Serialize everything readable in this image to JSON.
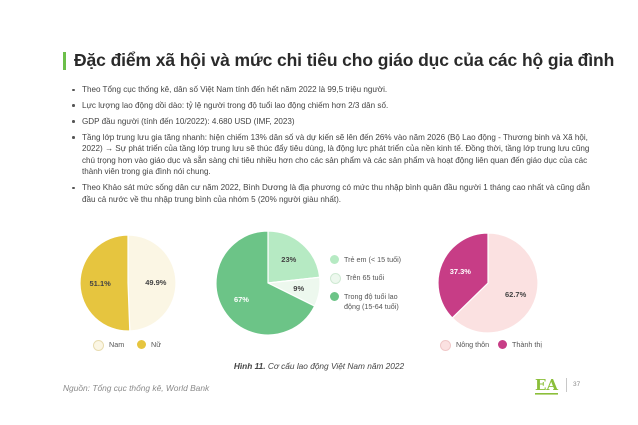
{
  "title": "Đặc điểm xã hội và mức chi tiêu cho giáo dục của các hộ gia đình",
  "bullets": [
    "Theo Tổng cục thống kê, dân số Việt Nam tính đến hết năm 2022 là 99,5 triệu người.",
    "Lực lượng lao động dồi dào: tỷ lệ người trong độ tuổi lao động chiếm hơn 2/3 dân số.",
    "GDP đầu người (tính đến 10/2022): 4.680 USD (IMF, 2023)",
    "Tầng lớp trung lưu gia tăng nhanh: hiện chiếm 13% dân số và dự kiến sẽ lên đến 26% vào năm 2026 (Bộ Lao động - Thương binh và Xã hội, 2022) → Sự phát triển của tầng lớp trung lưu sẽ thúc đẩy tiêu dùng, là động lực phát triển của nền kinh tế. Đồng thời, tầng lớp trung lưu cũng chú trọng hơn vào giáo dục và sẵn sàng chi tiêu nhiều hơn cho các sản phẩm và các sản phẩm và hoạt động liên quan đến giáo dục của các thành viên trong gia đình nói chung.",
    "Theo Khảo sát mức sống dân cư năm 2022, Bình Dương là địa phương có mức thu nhập bình quân đầu người 1 tháng cao nhất và cũng dẫn đầu cả nước về thu nhập trung bình của nhóm 5 (20% người giàu nhất)."
  ],
  "chart_data": [
    {
      "type": "pie",
      "labels": [
        "Nam",
        "Nữ"
      ],
      "values": [
        49.9,
        51.1
      ],
      "value_labels": [
        "49.9%",
        "51.1%"
      ],
      "colors": [
        "#fbf6e4",
        "#e6c53f"
      ],
      "label_colors": [
        "#444444",
        "#444444"
      ]
    },
    {
      "type": "pie",
      "labels": [
        "Trẻ em (< 15 tuổi)",
        "Trên 65 tuổi",
        "Trong độ tuổi lao động (15-64 tuổi)"
      ],
      "values": [
        23,
        9,
        67
      ],
      "value_labels": [
        "23%",
        "9%",
        "67%"
      ],
      "colors": [
        "#b6eac3",
        "#edf8ee",
        "#6cc487"
      ],
      "label_colors": [
        "#444444",
        "#444444",
        "#ffffff"
      ]
    },
    {
      "type": "pie",
      "labels": [
        "Nông thôn",
        "Thành thị"
      ],
      "values": [
        62.7,
        37.3
      ],
      "value_labels": [
        "62.7%",
        "37.3%"
      ],
      "colors": [
        "#fbe1e1",
        "#c73d86"
      ],
      "label_colors": [
        "#444444",
        "#ffffff"
      ]
    }
  ],
  "caption": {
    "label": "Hình 11.",
    "text": "Cơ cấu lao động Việt Nam năm 2022"
  },
  "source": "Nguồn: Tổng cục thống kê, World Bank",
  "logo_text": "EA",
  "page_number": "37",
  "colors": {
    "accent": "#6cbf4a"
  }
}
